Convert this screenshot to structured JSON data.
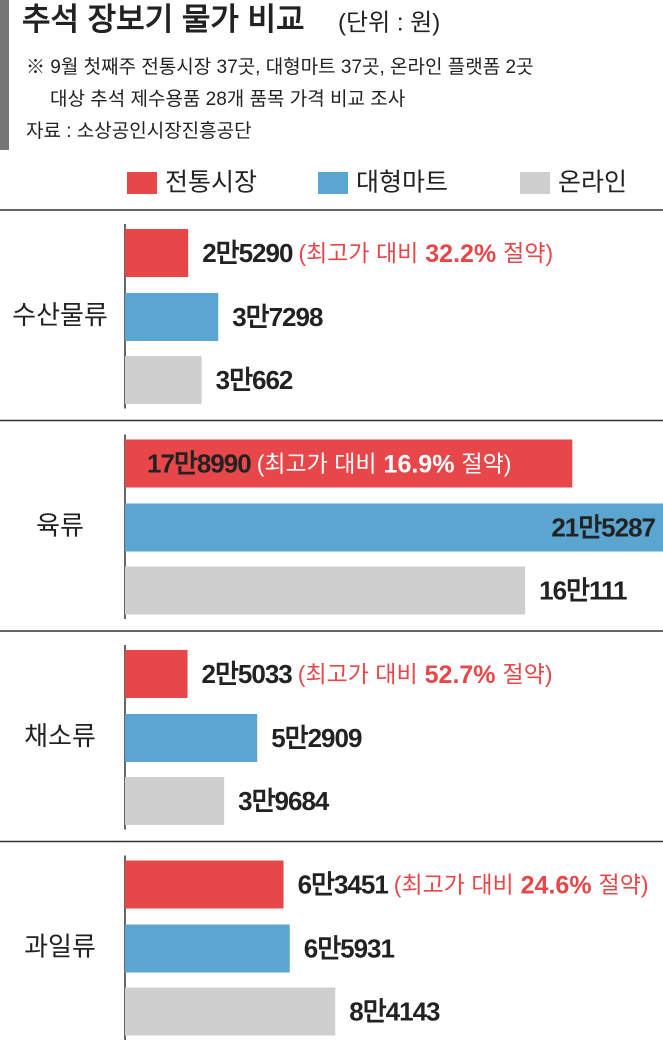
{
  "chart_data": {
    "type": "bar",
    "orientation": "horizontal",
    "title": "추석 장보기 물가 비교",
    "subtitle": "(단위 : 원)",
    "notes": [
      "※ 9월 첫째주 전통시장 37곳, 대형마트 37곳, 온라인 플랫폼 2곳",
      "대상 추석 제수용품 28개 품목 가격 비교 조사"
    ],
    "source": "자료 : 소상공인시장진흥공단",
    "categories": [
      "수산물류",
      "육류",
      "채소류",
      "과일류"
    ],
    "series": [
      {
        "name": "전통시장",
        "color": "#e8474a",
        "values": [
          25290,
          178990,
          25033,
          63451
        ],
        "value_labels": [
          "2만5290",
          "17만8990",
          "2만5033",
          "6만3451"
        ]
      },
      {
        "name": "대형마트",
        "color": "#5aa6d0",
        "values": [
          37298,
          215287,
          52909,
          65931
        ],
        "value_labels": [
          "3만7298",
          "21만5287",
          "5만2909",
          "6만5931"
        ]
      },
      {
        "name": "온라인",
        "color": "#cfcfcf",
        "values": [
          30662,
          160111,
          39684,
          84143
        ],
        "value_labels": [
          "3만662",
          "16만111",
          "3만9684",
          "8만4143"
        ]
      }
    ],
    "annotations": [
      {
        "before": "(최고가 대비",
        "highlight": "32.2%",
        "after": "절약)"
      },
      {
        "before": "(최고가 대비",
        "highlight": "16.9%",
        "after": "절약)"
      },
      {
        "before": "(최고가 대비",
        "highlight": "52.7%",
        "after": "절약)"
      },
      {
        "before": "(최고가 대비",
        "highlight": "24.6%",
        "after": "절약)"
      }
    ],
    "legend": "top"
  }
}
